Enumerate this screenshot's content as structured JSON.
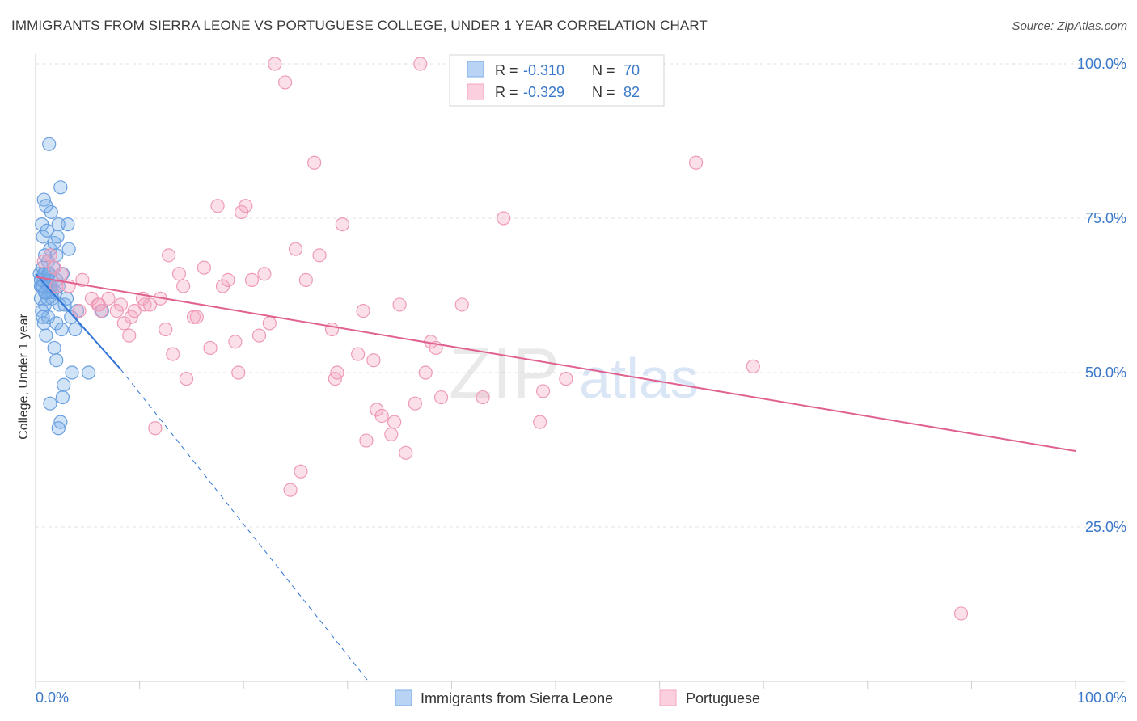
{
  "title": "IMMIGRANTS FROM SIERRA LEONE VS PORTUGUESE COLLEGE, UNDER 1 YEAR CORRELATION CHART",
  "source": "Source: ZipAtlas.com",
  "watermark": {
    "zip": "ZIP",
    "atlas": "atlas"
  },
  "colors": {
    "blue": "#7aaee8",
    "blue_line": "#2f73d6",
    "pink": "#f4a6c0",
    "pink_line": "#e06090",
    "tick_label": "#3a78c9"
  },
  "legend": {
    "rows": [
      {
        "r_label": "R =",
        "r_value": "-0.310",
        "n_label": "N =",
        "n_value": "70"
      },
      {
        "r_label": "R =",
        "r_value": "-0.329",
        "n_label": "N =",
        "n_value": "82"
      }
    ]
  },
  "chart_data": {
    "type": "scatter",
    "title": "",
    "xlabel": "",
    "ylabel": "College, Under 1 year",
    "xlim": [
      0,
      100
    ],
    "ylim": [
      0,
      100
    ],
    "x_tick_labels": [
      "0.0%",
      "100.0%"
    ],
    "y_tick_labels": [
      "100.0%",
      "75.0%",
      "50.0%",
      "25.0%"
    ],
    "grid": true,
    "legend_position": "bottom",
    "series": [
      {
        "name": "Immigrants from Sierra Leone",
        "color": "#7aaee8",
        "points": [
          [
            0.6,
            64
          ],
          [
            0.8,
            65
          ],
          [
            1.0,
            63
          ],
          [
            1.2,
            66
          ],
          [
            0.5,
            62
          ],
          [
            1.5,
            64
          ],
          [
            0.7,
            67
          ],
          [
            0.9,
            61
          ],
          [
            1.1,
            65
          ],
          [
            1.3,
            63
          ],
          [
            0.4,
            66
          ],
          [
            1.6,
            62
          ],
          [
            0.6,
            60
          ],
          [
            0.8,
            58
          ],
          [
            1.0,
            56
          ],
          [
            1.2,
            68
          ],
          [
            1.4,
            70
          ],
          [
            0.7,
            72
          ],
          [
            1.8,
            71
          ],
          [
            2.0,
            69
          ],
          [
            2.2,
            74
          ],
          [
            1.5,
            76
          ],
          [
            0.8,
            78
          ],
          [
            1.0,
            77
          ],
          [
            2.4,
            80
          ],
          [
            1.3,
            87
          ],
          [
            0.6,
            74
          ],
          [
            1.1,
            73
          ],
          [
            3.1,
            74
          ],
          [
            3.2,
            70
          ],
          [
            2.1,
            72
          ],
          [
            0.9,
            69
          ],
          [
            1.7,
            67
          ],
          [
            2.6,
            66
          ],
          [
            0.5,
            64
          ],
          [
            1.9,
            63
          ],
          [
            2.3,
            61
          ],
          [
            2.8,
            61
          ],
          [
            3.4,
            59
          ],
          [
            2.0,
            58
          ],
          [
            1.2,
            59
          ],
          [
            0.7,
            59
          ],
          [
            4.0,
            60
          ],
          [
            3.8,
            57
          ],
          [
            2.5,
            57
          ],
          [
            1.8,
            54
          ],
          [
            2.0,
            52
          ],
          [
            3.5,
            50
          ],
          [
            5.1,
            50
          ],
          [
            2.7,
            48
          ],
          [
            2.6,
            46
          ],
          [
            1.4,
            45
          ],
          [
            2.4,
            42
          ],
          [
            2.2,
            41
          ],
          [
            6.4,
            60
          ],
          [
            3.0,
            62
          ],
          [
            1.5,
            65
          ],
          [
            0.9,
            66
          ],
          [
            1.2,
            64
          ],
          [
            0.5,
            65
          ],
          [
            1.0,
            63
          ],
          [
            1.4,
            64
          ],
          [
            0.8,
            66
          ],
          [
            1.6,
            63
          ],
          [
            2.0,
            65
          ],
          [
            0.7,
            64
          ],
          [
            1.1,
            62
          ],
          [
            1.3,
            66
          ],
          [
            2.2,
            64
          ],
          [
            0.9,
            63
          ]
        ]
      },
      {
        "name": "Portuguese",
        "color": "#f4a6c0",
        "points": [
          [
            0.8,
            68
          ],
          [
            1.4,
            69
          ],
          [
            1.8,
            67
          ],
          [
            2.5,
            66
          ],
          [
            4.2,
            60
          ],
          [
            4.5,
            65
          ],
          [
            5.4,
            62
          ],
          [
            6.0,
            61
          ],
          [
            6.3,
            60
          ],
          [
            7.0,
            62
          ],
          [
            8.2,
            61
          ],
          [
            8.5,
            58
          ],
          [
            9.0,
            56
          ],
          [
            9.2,
            59
          ],
          [
            10.3,
            62
          ],
          [
            10.5,
            61
          ],
          [
            11.0,
            61
          ],
          [
            11.5,
            41
          ],
          [
            12.5,
            57
          ],
          [
            12.8,
            69
          ],
          [
            13.2,
            53
          ],
          [
            13.8,
            66
          ],
          [
            14.2,
            64
          ],
          [
            14.5,
            49
          ],
          [
            15.2,
            59
          ],
          [
            15.5,
            59
          ],
          [
            16.2,
            67
          ],
          [
            16.8,
            54
          ],
          [
            17.5,
            77
          ],
          [
            18.0,
            64
          ],
          [
            18.5,
            65
          ],
          [
            19.2,
            55
          ],
          [
            19.5,
            50
          ],
          [
            19.8,
            76
          ],
          [
            20.2,
            77
          ],
          [
            20.8,
            65
          ],
          [
            21.5,
            56
          ],
          [
            22.0,
            66
          ],
          [
            22.5,
            58
          ],
          [
            23.0,
            100
          ],
          [
            24.0,
            97
          ],
          [
            24.5,
            31
          ],
          [
            25.0,
            70
          ],
          [
            25.5,
            34
          ],
          [
            26.0,
            65
          ],
          [
            26.8,
            84
          ],
          [
            27.3,
            69
          ],
          [
            28.5,
            57
          ],
          [
            28.8,
            49
          ],
          [
            29.0,
            50
          ],
          [
            29.5,
            74
          ],
          [
            31.0,
            53
          ],
          [
            31.5,
            60
          ],
          [
            31.8,
            39
          ],
          [
            32.5,
            52
          ],
          [
            32.8,
            44
          ],
          [
            33.3,
            43
          ],
          [
            34.2,
            40
          ],
          [
            34.5,
            42
          ],
          [
            35.0,
            61
          ],
          [
            35.6,
            37
          ],
          [
            36.5,
            45
          ],
          [
            37.5,
            50
          ],
          [
            38.0,
            55
          ],
          [
            38.5,
            54
          ],
          [
            39.0,
            46
          ],
          [
            41.0,
            61
          ],
          [
            43.0,
            46
          ],
          [
            45.0,
            75
          ],
          [
            48.5,
            42
          ],
          [
            48.8,
            47
          ],
          [
            51.0,
            49
          ],
          [
            63.5,
            84
          ],
          [
            69.0,
            51
          ],
          [
            89.0,
            11
          ],
          [
            37.0,
            100
          ],
          [
            2.0,
            64
          ],
          [
            3.2,
            64
          ],
          [
            6.1,
            61
          ],
          [
            7.8,
            60
          ],
          [
            9.5,
            60
          ],
          [
            12.0,
            62
          ]
        ]
      }
    ],
    "trend_lines": [
      {
        "series": "Immigrants from Sierra Leone",
        "x0": 0.0,
        "y0": 66.0,
        "x1": 8.2,
        "y1": 50.5,
        "dashed_to_x": 32.0,
        "dashed_to_y": 0.0
      },
      {
        "series": "Portuguese",
        "x0": 0.0,
        "y0": 65.5,
        "x1": 100.0,
        "y1": 37.3
      }
    ]
  }
}
